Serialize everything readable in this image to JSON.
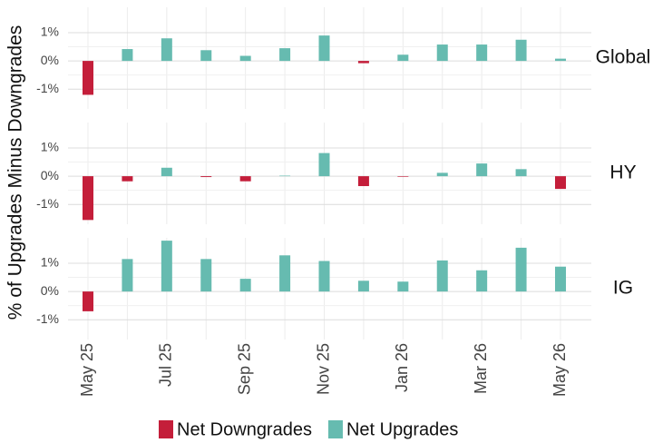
{
  "ylabel": "% of Upgrades Minus Downgrades",
  "legend": [
    {
      "name": "Net Downgrades",
      "color": "#c41e3a"
    },
    {
      "name": "Net Upgrades",
      "color": "#66bbb0"
    }
  ],
  "chart_data": [
    {
      "type": "bar",
      "title": "Global",
      "categories": [
        "May 25",
        null,
        "Jul 25",
        null,
        "Sep 25",
        null,
        "Nov 25",
        null,
        "Jan 26",
        null,
        "Mar 26",
        null,
        "May 26"
      ],
      "values": [
        -1.2,
        0.42,
        0.8,
        0.38,
        0.18,
        0.45,
        0.9,
        -0.08,
        0.22,
        0.58,
        0.58,
        0.75,
        0.08
      ],
      "ylim": [
        -1.7,
        1.9
      ],
      "yticks": [
        {
          "value": -1,
          "label": "-1%"
        },
        {
          "value": 0,
          "label": "0%"
        },
        {
          "value": 1,
          "label": "1%"
        }
      ],
      "grid": true
    },
    {
      "type": "bar",
      "title": "HY",
      "categories": [
        "May 25",
        null,
        "Jul 25",
        null,
        "Sep 25",
        null,
        "Nov 25",
        null,
        "Jan 26",
        null,
        "Mar 26",
        null,
        "May 26"
      ],
      "values": [
        -1.55,
        -0.18,
        0.3,
        -0.03,
        -0.18,
        0.02,
        0.82,
        -0.35,
        -0.02,
        0.12,
        0.45,
        0.25,
        -0.45
      ],
      "ylim": [
        -1.7,
        1.9
      ],
      "yticks": [
        {
          "value": -1,
          "label": "-1%"
        },
        {
          "value": 0,
          "label": "0%"
        },
        {
          "value": 1,
          "label": "1%"
        }
      ],
      "grid": true
    },
    {
      "type": "bar",
      "title": "IG",
      "categories": [
        "May 25",
        null,
        "Jul 25",
        null,
        "Sep 25",
        null,
        "Nov 25",
        null,
        "Jan 26",
        null,
        "Mar 26",
        null,
        "May 26"
      ],
      "values": [
        -0.7,
        1.15,
        1.8,
        1.15,
        0.45,
        1.28,
        1.08,
        0.38,
        0.35,
        1.1,
        0.75,
        1.55,
        0.88
      ],
      "ylim": [
        -1.7,
        1.9
      ],
      "yticks": [
        {
          "value": -1,
          "label": "-1%"
        },
        {
          "value": 0,
          "label": "0%"
        },
        {
          "value": 1,
          "label": "1%"
        }
      ],
      "grid": true
    }
  ]
}
